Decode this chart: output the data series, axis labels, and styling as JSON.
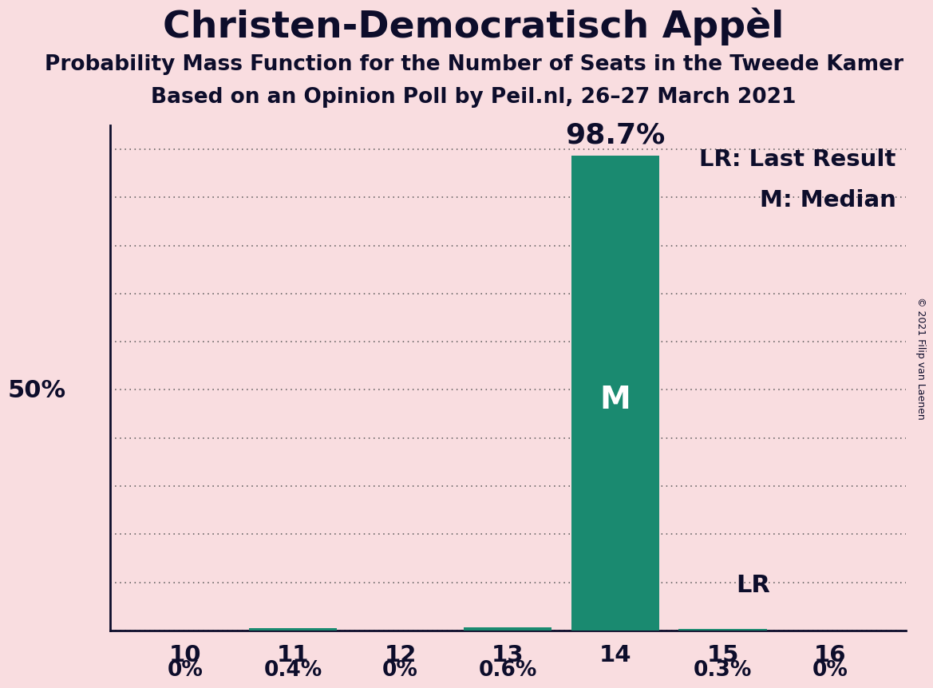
{
  "title": "Christen-Democratisch Appèl",
  "subtitle1": "Probability Mass Function for the Number of Seats in the Tweede Kamer",
  "subtitle2": "Based on an Opinion Poll by Peil.nl, 26–27 March 2021",
  "copyright": "© 2021 Filip van Laenen",
  "seats": [
    10,
    11,
    12,
    13,
    14,
    15,
    16
  ],
  "probabilities": [
    0.0,
    0.4,
    0.0,
    0.6,
    98.7,
    0.3,
    0.0
  ],
  "prob_labels": [
    "0%",
    "0.4%",
    "0%",
    "0.6%",
    "98.7%",
    "0.3%",
    "0%"
  ],
  "bar_color": "#1a8a70",
  "median_seat": 14,
  "lr_seat": 15,
  "background_color": "#f9dde0",
  "text_color": "#0d0d2b",
  "bar_label_color": "#ffffff",
  "ylim": [
    0,
    105
  ],
  "grid_interval": 10,
  "fifty_pct_label": "50%",
  "legend_lr": "LR: Last Result",
  "legend_m": "M: Median",
  "lr_label": "LR",
  "m_label": "M",
  "title_fontsize": 34,
  "subtitle_fontsize": 19,
  "prob_label_fontsize": 19,
  "big_prob_label_fontsize": 26,
  "tick_fontsize": 21,
  "m_fontsize": 28,
  "lr_text_fontsize": 22,
  "legend_fontsize": 21,
  "fifty_fontsize": 22,
  "copyright_fontsize": 9
}
